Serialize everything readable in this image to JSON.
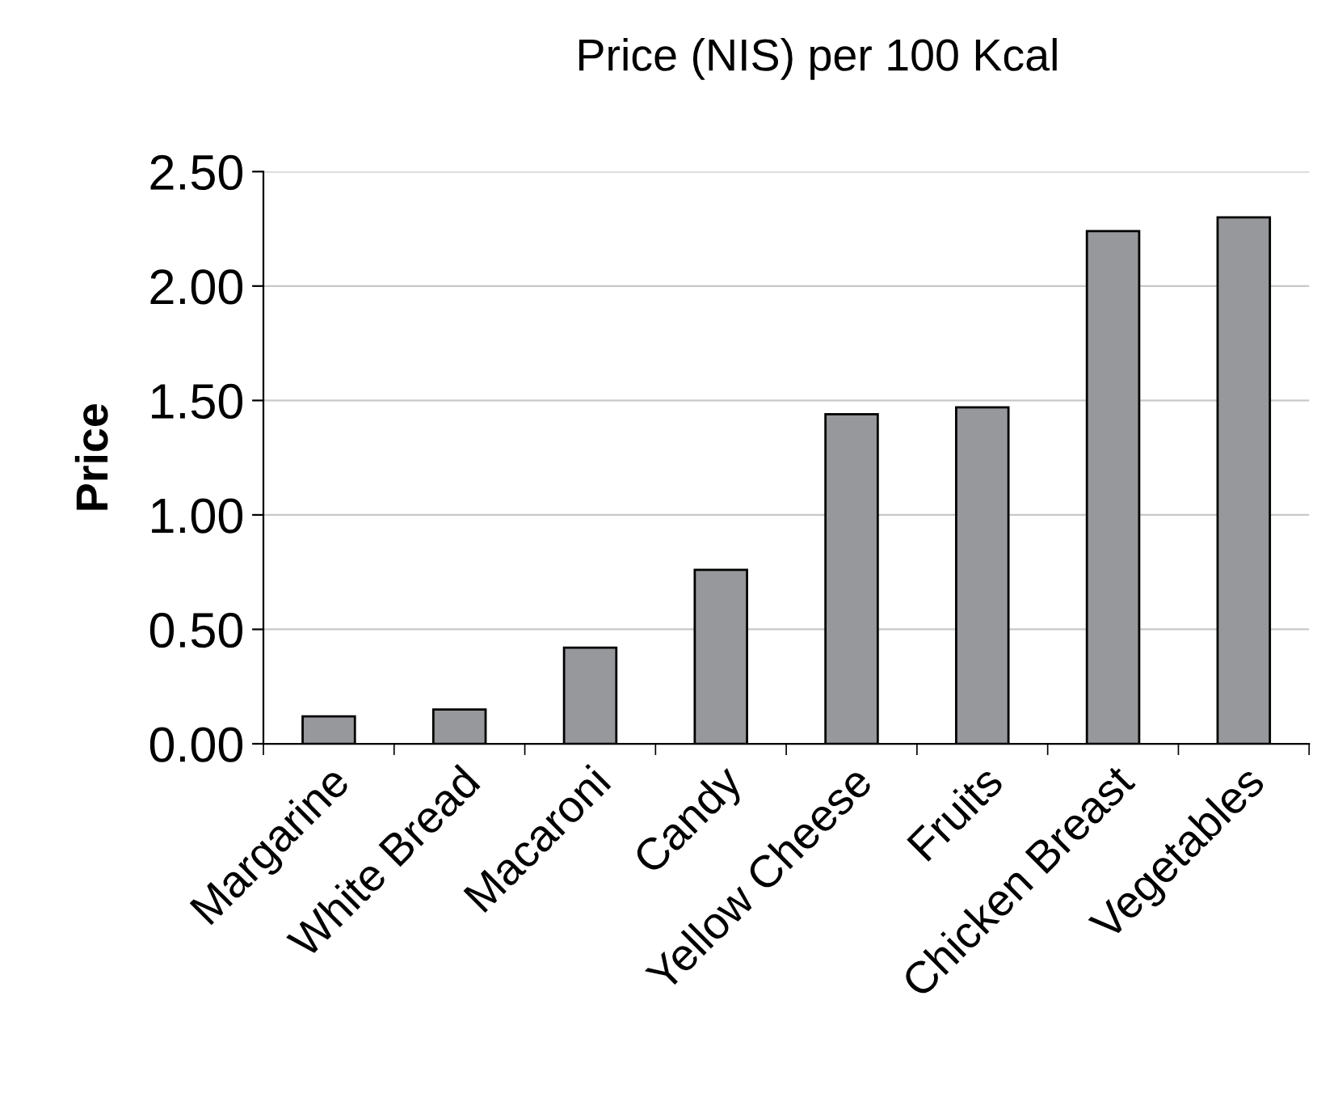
{
  "chart_data": {
    "type": "bar",
    "title": "Price (NIS) per 100 Kcal",
    "ylabel": "Price",
    "categories": [
      "Margarine",
      "White Bread",
      "Macaroni",
      "Candy",
      "Yellow Cheese",
      "Fruits",
      "Chicken Breast",
      "Vegetables"
    ],
    "values": [
      0.12,
      0.15,
      0.42,
      0.76,
      1.44,
      1.47,
      2.24,
      2.3
    ],
    "color": "#97989b",
    "ylim": [
      0,
      2.5
    ],
    "yticks": [
      {
        "value": 0,
        "label": "0.00"
      },
      {
        "value": 0.5,
        "label": "0.50"
      },
      {
        "value": 1,
        "label": "1.00"
      },
      {
        "value": 1.5,
        "label": "1.50"
      },
      {
        "value": 2,
        "label": "2.00"
      },
      {
        "value": 2.5,
        "label": "2.50"
      }
    ],
    "grid": "y",
    "legend": false
  }
}
